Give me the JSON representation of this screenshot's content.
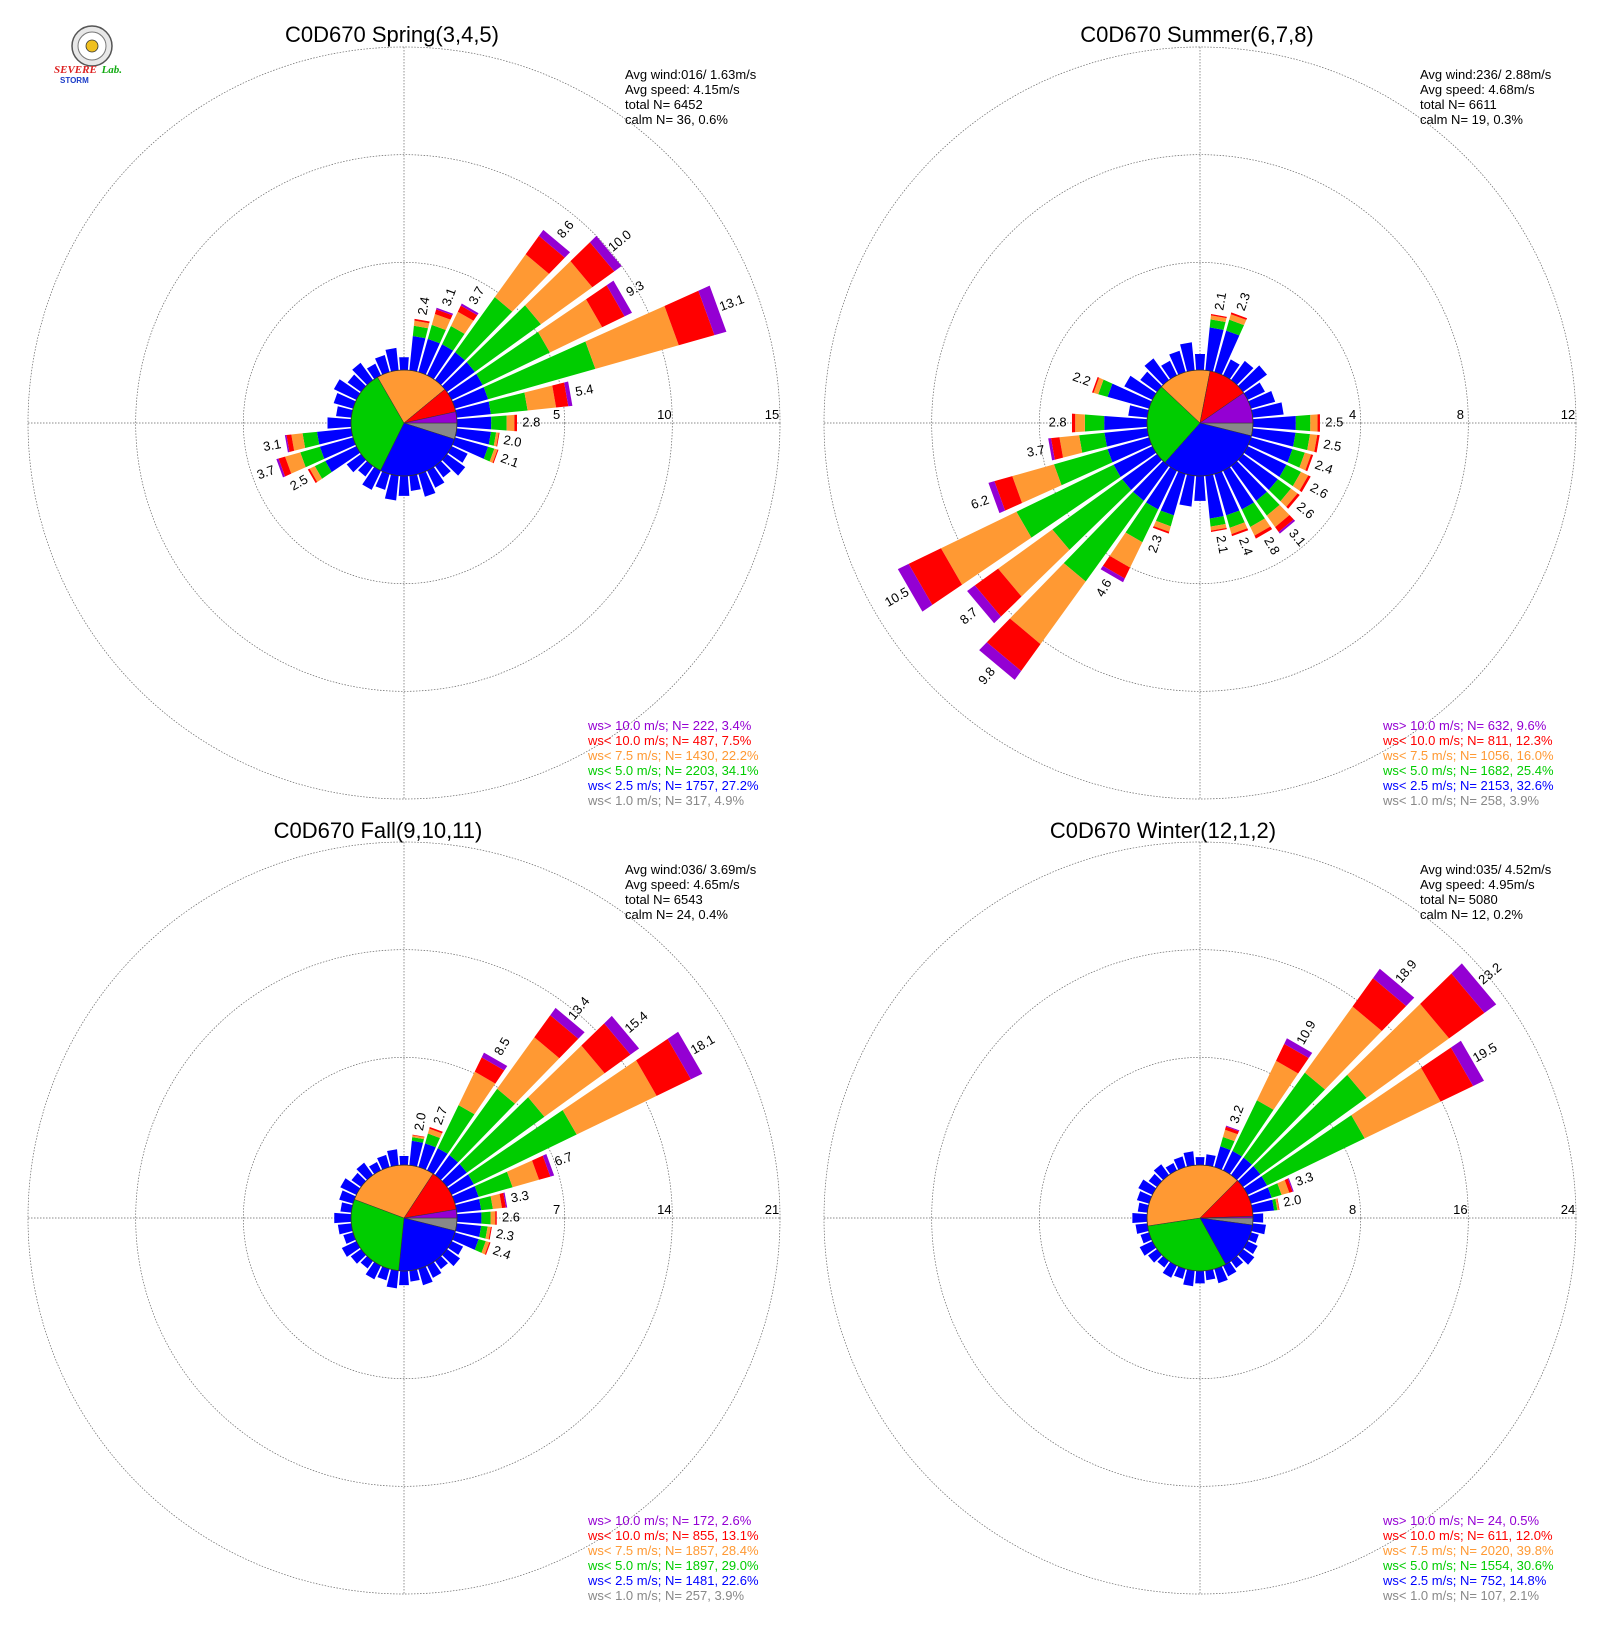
{
  "colors": {
    "ws_gt10": "#9400d3",
    "ws_lt10": "#ff0000",
    "ws_lt7_5": "#ff9933",
    "ws_lt5": "#00cc00",
    "ws_lt2_5": "#0000ff",
    "ws_lt1": "#888888",
    "grid": "#666666"
  },
  "logo": {
    "text1": "SEVERE",
    "text2": "STORM",
    "text3": "Lab.",
    "icon": "seal-icon"
  },
  "chart_data": [
    {
      "type": "wind-rose",
      "title": "C0D670 Spring(3,4,5)",
      "rings": [
        5,
        10,
        15
      ],
      "stats": [
        "Avg wind:016/ 1.63m/s",
        "Avg speed: 4.15m/s",
        "total N=       6452",
        "calm N=     36,   0.6%"
      ],
      "legend": [
        "ws> 10.0 m/s; N=   222,  3.4%",
        "ws< 10.0 m/s; N=   487,  7.5%",
        "ws<  7.5 m/s; N=  1430, 22.2%",
        "ws<  5.0 m/s; N=  2203, 34.1%",
        "ws<  2.5 m/s; N=  1757, 27.2%",
        "ws<  1.0 m/s; N=   317,  4.9%"
      ],
      "pie": [
        4.9,
        27.2,
        34.1,
        22.2,
        7.5,
        3.4
      ],
      "petals": [
        {
          "dir": 10,
          "total": 2.4,
          "label": "2.4"
        },
        {
          "dir": 20,
          "total": 3.1,
          "label": "3.1"
        },
        {
          "dir": 30,
          "total": 3.7,
          "label": "3.7"
        },
        {
          "dir": 40,
          "total": 8.6,
          "label": "8.6"
        },
        {
          "dir": 50,
          "total": 10.0,
          "label": "10.0"
        },
        {
          "dir": 60,
          "total": 9.3,
          "label": "9.3"
        },
        {
          "dir": 70,
          "total": 13.1,
          "label": "13.1"
        },
        {
          "dir": 80,
          "total": 5.4,
          "label": "5.4"
        },
        {
          "dir": 90,
          "total": 2.8,
          "label": "2.8"
        },
        {
          "dir": 100,
          "total": 2.0,
          "label": "2.0"
        },
        {
          "dir": 110,
          "total": 2.1,
          "label": "2.1"
        },
        {
          "dir": 240,
          "total": 2.5,
          "label": "2.5"
        },
        {
          "dir": 250,
          "total": 3.7,
          "label": "3.7"
        },
        {
          "dir": 260,
          "total": 3.1,
          "label": "3.1"
        }
      ]
    },
    {
      "type": "wind-rose",
      "title": "C0D670 Summer(6,7,8)",
      "rings": [
        4,
        8,
        12
      ],
      "stats": [
        "Avg wind:236/ 2.88m/s",
        "Avg speed: 4.68m/s",
        "total N=       6611",
        "calm N=     19,   0.3%"
      ],
      "legend": [
        "ws> 10.0 m/s; N=   632,  9.6%",
        "ws< 10.0 m/s; N=   811, 12.3%",
        "ws<  7.5 m/s; N=  1056, 16.0%",
        "ws<  5.0 m/s; N=  1682, 25.4%",
        "ws<  2.5 m/s; N=  2153, 32.6%",
        "ws<  1.0 m/s; N=   258,  3.9%"
      ],
      "pie": [
        3.9,
        32.6,
        25.4,
        16.0,
        12.3,
        9.6
      ],
      "petals": [
        {
          "dir": 10,
          "total": 2.1,
          "label": "2.1"
        },
        {
          "dir": 20,
          "total": 2.3,
          "label": "2.3"
        },
        {
          "dir": 90,
          "total": 2.5,
          "label": "2.5"
        },
        {
          "dir": 100,
          "total": 2.5,
          "label": "2.5"
        },
        {
          "dir": 110,
          "total": 2.4,
          "label": "2.4"
        },
        {
          "dir": 120,
          "total": 2.6,
          "label": "2.6"
        },
        {
          "dir": 130,
          "total": 2.6,
          "label": "2.6"
        },
        {
          "dir": 140,
          "total": 3.1,
          "label": "3.1"
        },
        {
          "dir": 150,
          "total": 2.8,
          "label": "2.8"
        },
        {
          "dir": 160,
          "total": 2.4,
          "label": "2.4"
        },
        {
          "dir": 170,
          "total": 2.1,
          "label": "2.1"
        },
        {
          "dir": 200,
          "total": 2.3,
          "label": "2.3"
        },
        {
          "dir": 210,
          "total": 4.6,
          "label": "4.6"
        },
        {
          "dir": 220,
          "total": 9.8,
          "label": "9.8"
        },
        {
          "dir": 230,
          "total": 8.7,
          "label": "8.7"
        },
        {
          "dir": 240,
          "total": 10.5,
          "label": "10.5"
        },
        {
          "dir": 250,
          "total": 6.2,
          "label": "6.2"
        },
        {
          "dir": 260,
          "total": 3.7,
          "label": "3.7"
        },
        {
          "dir": 270,
          "total": 2.8,
          "label": "2.8"
        },
        {
          "dir": 290,
          "total": 2.2,
          "label": "2.2"
        }
      ]
    },
    {
      "type": "wind-rose",
      "title": "C0D670 Fall(9,10,11)",
      "rings": [
        7,
        14,
        21
      ],
      "stats": [
        "Avg wind:036/ 3.69m/s",
        "Avg speed: 4.65m/s",
        "total N=       6543",
        "calm N=     24,   0.4%"
      ],
      "legend": [
        "ws> 10.0 m/s; N=   172,  2.6%",
        "ws< 10.0 m/s; N=   855, 13.1%",
        "ws<  7.5 m/s; N=  1857, 28.4%",
        "ws<  5.0 m/s; N=  1897, 29.0%",
        "ws<  2.5 m/s; N=  1481, 22.6%",
        "ws<  1.0 m/s; N=   257,  3.9%"
      ],
      "pie": [
        3.9,
        22.6,
        29.0,
        28.4,
        13.1,
        2.6
      ],
      "petals": [
        {
          "dir": 10,
          "total": 2.0,
          "label": "2.0"
        },
        {
          "dir": 20,
          "total": 2.7,
          "label": "2.7"
        },
        {
          "dir": 30,
          "total": 8.5,
          "label": "8.5"
        },
        {
          "dir": 40,
          "total": 13.4,
          "label": "13.4"
        },
        {
          "dir": 50,
          "total": 15.4,
          "label": "15.4"
        },
        {
          "dir": 60,
          "total": 18.1,
          "label": "18.1"
        },
        {
          "dir": 70,
          "total": 6.7,
          "label": "6.7"
        },
        {
          "dir": 80,
          "total": 3.3,
          "label": "3.3"
        },
        {
          "dir": 90,
          "total": 2.6,
          "label": "2.6"
        },
        {
          "dir": 100,
          "total": 2.3,
          "label": "2.3"
        },
        {
          "dir": 110,
          "total": 2.4,
          "label": "2.4"
        }
      ]
    },
    {
      "type": "wind-rose",
      "title": "C0D670 Winter(12,1,2)",
      "rings": [
        8,
        16,
        24
      ],
      "stats": [
        "Avg wind:035/ 4.52m/s",
        "Avg speed: 4.95m/s",
        "total N=       5080",
        "calm N=     12,   0.2%"
      ],
      "legend": [
        "ws> 10.0 m/s; N=    24,  0.5%",
        "ws< 10.0 m/s; N=   611, 12.0%",
        "ws<  7.5 m/s; N=  2020, 39.8%",
        "ws<  5.0 m/s; N=  1554, 30.6%",
        "ws<  2.5 m/s; N=   752, 14.8%",
        "ws<  1.0 m/s; N=   107,  2.1%"
      ],
      "pie": [
        2.1,
        14.8,
        30.6,
        39.8,
        12.0,
        0.5
      ],
      "petals": [
        {
          "dir": 20,
          "total": 3.2,
          "label": "3.2"
        },
        {
          "dir": 30,
          "total": 10.9,
          "label": "10.9"
        },
        {
          "dir": 40,
          "total": 18.9,
          "label": "18.9"
        },
        {
          "dir": 50,
          "total": 23.2,
          "label": "23.2"
        },
        {
          "dir": 60,
          "total": 19.5,
          "label": "19.5"
        },
        {
          "dir": 70,
          "total": 3.3,
          "label": "3.3"
        },
        {
          "dir": 80,
          "total": 2.0,
          "label": "2.0"
        }
      ]
    }
  ]
}
